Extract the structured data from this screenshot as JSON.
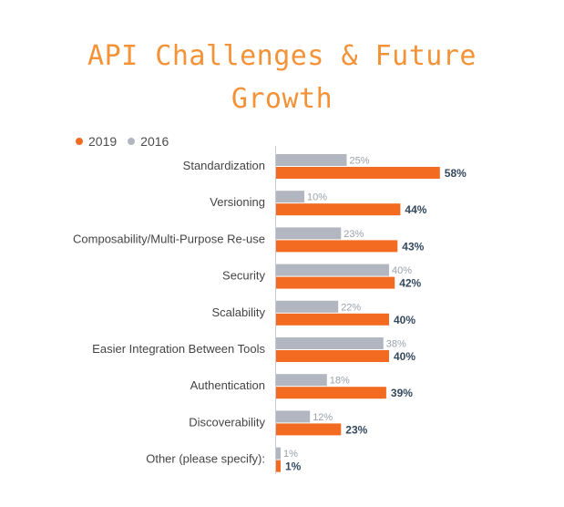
{
  "title_lines": [
    "API Challenges & Future",
    "Growth"
  ],
  "legend": [
    {
      "label": "2019",
      "color": "#f26b21"
    },
    {
      "label": "2016",
      "color": "#b1b6c0"
    }
  ],
  "chart_data": {
    "type": "bar",
    "orientation": "horizontal",
    "title": "API Challenges & Future Growth",
    "categories": [
      "Standardization",
      "Versioning",
      "Composability/Multi-Purpose Re-use",
      "Security",
      "Scalability",
      "Easier Integration Between Tools",
      "Authentication",
      "Discoverability",
      "Other (please specify):"
    ],
    "series": [
      {
        "name": "2016",
        "color": "#b1b6c0",
        "values": [
          25,
          10,
          23,
          40,
          22,
          38,
          18,
          12,
          1
        ],
        "labels": [
          "25%",
          "10%",
          "23%",
          "40%",
          "22%",
          "38%",
          "18%",
          "12%",
          "1%"
        ]
      },
      {
        "name": "2019",
        "color": "#f26b21",
        "values": [
          58,
          44,
          43,
          42,
          40,
          40,
          39,
          23,
          1
        ],
        "labels": [
          "58%",
          "44%",
          "43%",
          "42%",
          "40%",
          "40%",
          "39%",
          "23%",
          "1%"
        ]
      }
    ],
    "xlim": [
      0,
      60
    ],
    "grid": false,
    "legend_position": "top-left",
    "value_unit": "%"
  }
}
